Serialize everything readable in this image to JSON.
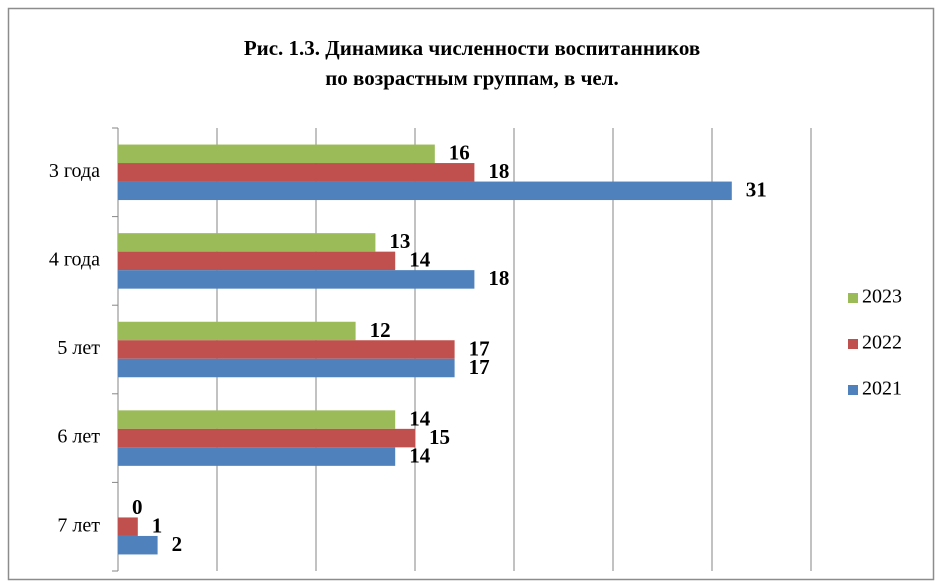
{
  "chart_data": {
    "type": "hbar",
    "title": [
      "Рис. 1.3. Динамика численности воспитанников",
      "по возрастным группам, в чел."
    ],
    "categories": [
      "3 года",
      "4 года",
      "5 лет",
      "6 лет",
      "7 лет"
    ],
    "series": [
      {
        "name": "2023",
        "color": "#9bbb59",
        "values": [
          16,
          13,
          12,
          14,
          0
        ]
      },
      {
        "name": "2022",
        "color": "#c0504d",
        "values": [
          18,
          14,
          17,
          15,
          1
        ]
      },
      {
        "name": "2021",
        "color": "#4f81bd",
        "values": [
          31,
          18,
          17,
          14,
          2
        ]
      }
    ],
    "xlim": [
      0,
      35
    ],
    "xticks": [
      0,
      5,
      10,
      15,
      20,
      25,
      30,
      35
    ],
    "grid": true,
    "legend": "right"
  }
}
